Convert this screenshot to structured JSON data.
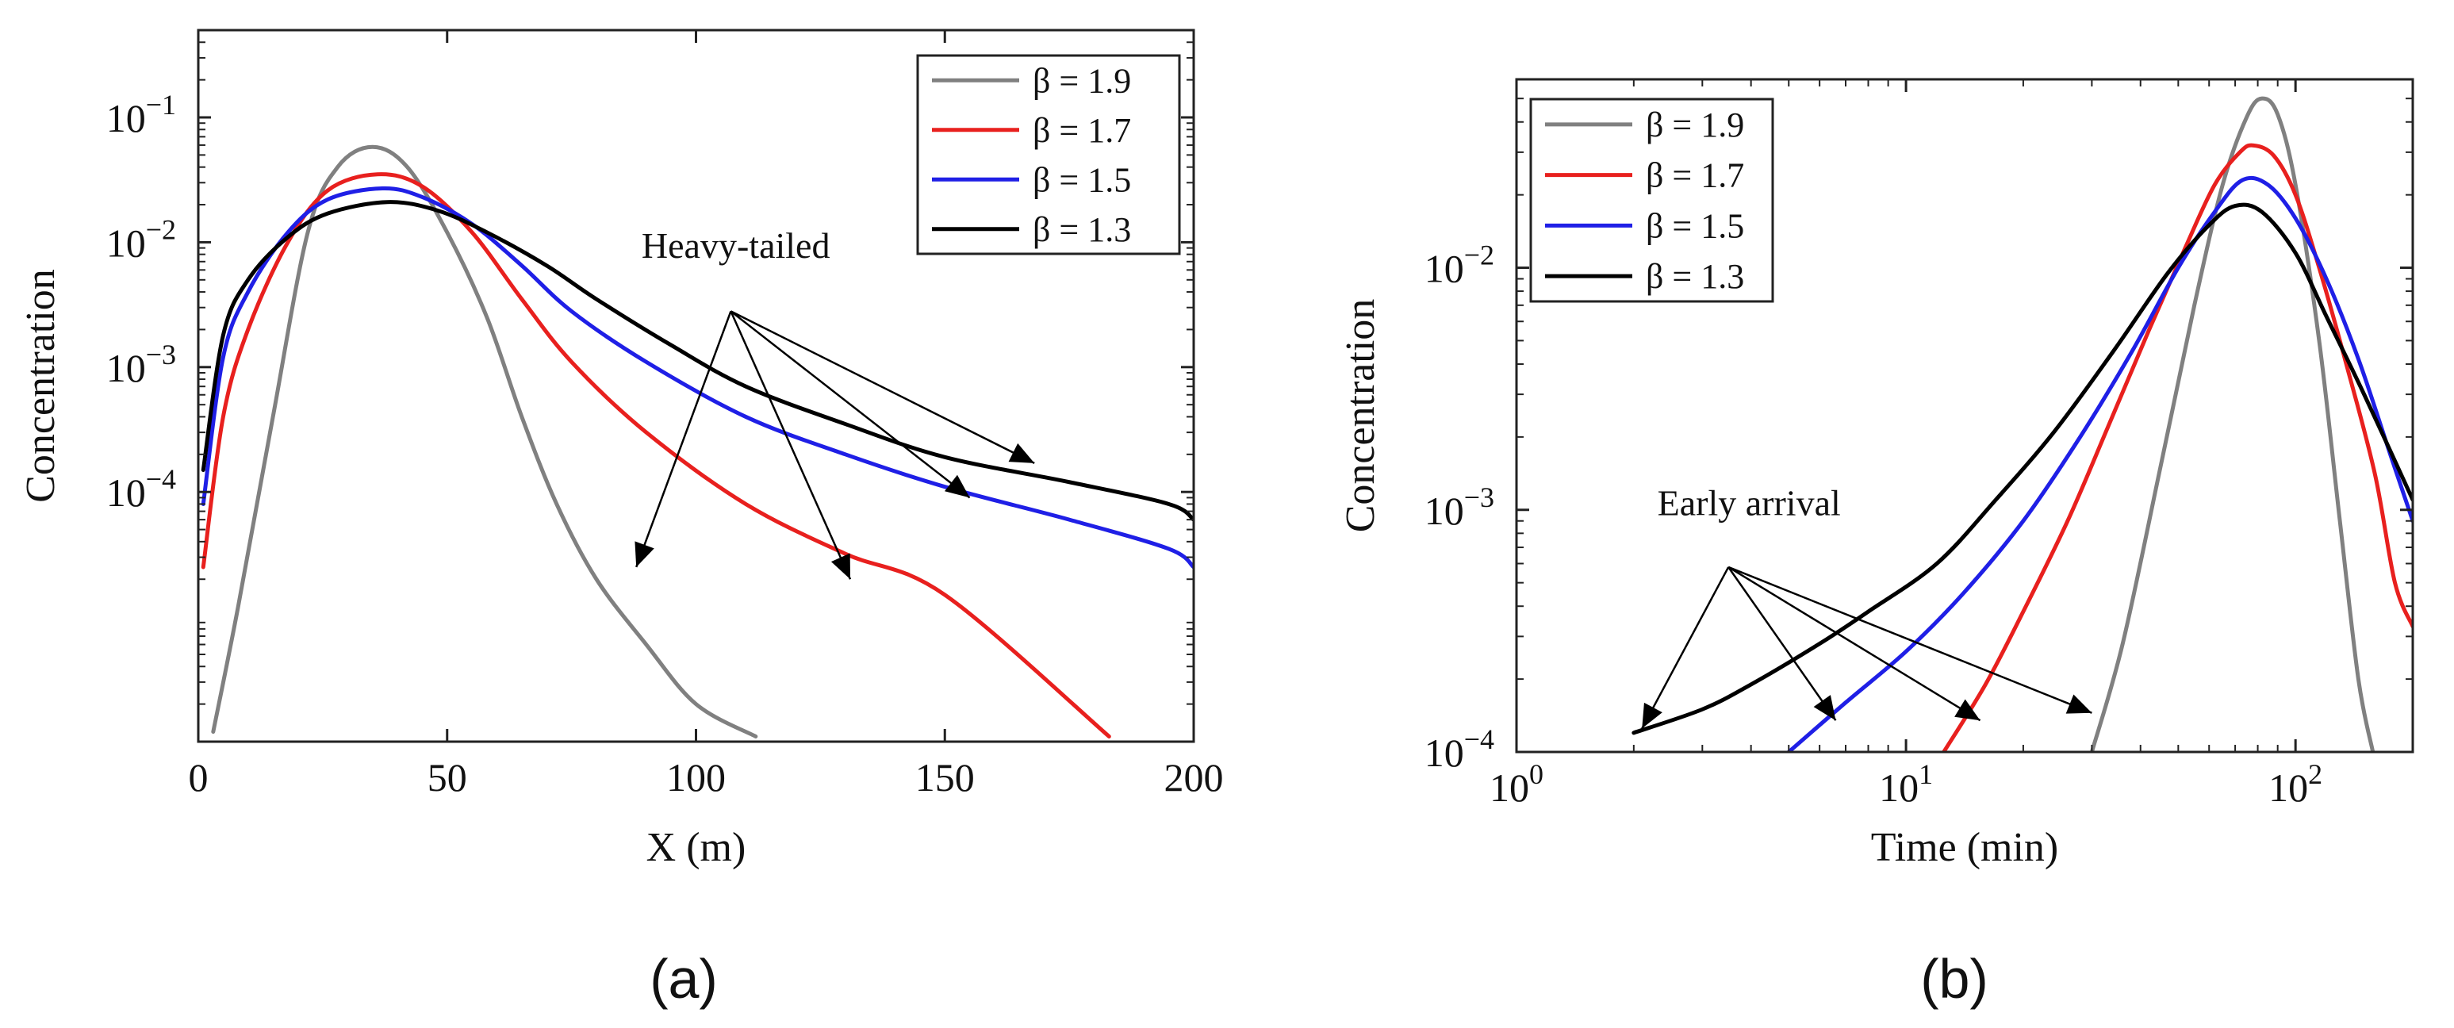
{
  "chart_data": [
    {
      "type": "line",
      "panel_label": "(a)",
      "xlabel": "X (m)",
      "ylabel": "Concentration",
      "xscale": "linear",
      "yscale": "log",
      "xlim": [
        0,
        200
      ],
      "ylim": [
        1e-06,
        0.5
      ],
      "xticks": [
        0,
        50,
        100,
        150,
        200
      ],
      "xtick_labels": [
        "0",
        "50",
        "100",
        "150",
        "200"
      ],
      "yticks": [
        0.0001,
        0.001,
        0.01,
        0.1
      ],
      "ytick_labels": [
        "10^-4",
        "10^-3",
        "10^-2",
        "10^-1"
      ],
      "legend_position": "top-right",
      "series": [
        {
          "name": "β = 1.9",
          "color": "#808080",
          "x": [
            3,
            8,
            15,
            22,
            28,
            35,
            42,
            50,
            58,
            65,
            72,
            80,
            90,
            100,
            112
          ],
          "y": [
            1.2e-06,
            1.2e-05,
            0.0004,
            0.012,
            0.04,
            0.058,
            0.04,
            0.012,
            0.0025,
            0.0004,
            8e-05,
            2e-05,
            6e-06,
            2e-06,
            1.1e-06
          ]
        },
        {
          "name": "β = 1.7",
          "color": "#e8201e",
          "x": [
            1,
            5,
            10,
            18,
            26,
            36,
            45,
            55,
            65,
            75,
            90,
            110,
            130,
            150,
            183
          ],
          "y": [
            2.5e-05,
            0.0004,
            0.002,
            0.01,
            0.026,
            0.035,
            0.028,
            0.012,
            0.0035,
            0.0011,
            0.0003,
            8e-05,
            3.2e-05,
            1.5e-05,
            1.1e-06
          ]
        },
        {
          "name": "β = 1.5",
          "color": "#1f1fe6",
          "x": [
            1,
            5,
            10,
            18,
            26,
            37,
            45,
            55,
            65,
            75,
            90,
            110,
            130,
            150,
            175,
            195,
            200
          ],
          "y": [
            8e-05,
            0.0012,
            0.004,
            0.012,
            0.022,
            0.027,
            0.023,
            0.014,
            0.0065,
            0.0028,
            0.0011,
            0.0004,
            0.0002,
            0.00011,
            6e-05,
            3.5e-05,
            2.5e-05
          ]
        },
        {
          "name": "β = 1.3",
          "color": "#000000",
          "x": [
            1,
            5,
            10,
            18,
            26,
            38,
            48,
            58,
            70,
            80,
            95,
            110,
            130,
            150,
            175,
            195,
            200
          ],
          "y": [
            0.00015,
            0.0018,
            0.005,
            0.011,
            0.017,
            0.021,
            0.018,
            0.012,
            0.0065,
            0.0035,
            0.0015,
            0.0007,
            0.00035,
            0.00019,
            0.00012,
            8e-05,
            6e-05
          ]
        }
      ],
      "annotations": [
        {
          "text": "Heavy-tailed",
          "anchor": {
            "x": 108,
            "y": 0.0075
          },
          "origin": {
            "x": 107,
            "y": 0.0028
          },
          "targets": [
            {
              "x": 88,
              "y": 2.5e-05
            },
            {
              "x": 131,
              "y": 2e-05
            },
            {
              "x": 155,
              "y": 9e-05
            },
            {
              "x": 168,
              "y": 0.00017
            }
          ]
        }
      ]
    },
    {
      "type": "line",
      "panel_label": "(b)",
      "xlabel": "Time (min)",
      "ylabel": "Concentration",
      "xscale": "log",
      "yscale": "log",
      "xlim": [
        1,
        200
      ],
      "ylim": [
        0.0001,
        0.06
      ],
      "xticks": [
        1,
        10,
        100
      ],
      "xtick_labels": [
        "10^0",
        "10^1",
        "10^2"
      ],
      "yticks": [
        0.0001,
        0.001,
        0.01
      ],
      "ytick_labels": [
        "10^-4",
        "10^-3",
        "10^-2"
      ],
      "legend_position": "top-left",
      "series": [
        {
          "name": "β = 1.9",
          "color": "#808080",
          "x": [
            30,
            36,
            45,
            55,
            65,
            75,
            82,
            90,
            100,
            115,
            130,
            145,
            158
          ],
          "y": [
            0.0001,
            0.00028,
            0.0015,
            0.007,
            0.022,
            0.042,
            0.05,
            0.043,
            0.022,
            0.005,
            0.0009,
            0.0002,
            0.0001
          ]
        },
        {
          "name": "β = 1.7",
          "color": "#e8201e",
          "x": [
            12.5,
            16,
            20,
            26,
            33,
            42,
            52,
            62,
            72,
            78,
            88,
            100,
            115,
            135,
            160,
            180,
            200
          ],
          "y": [
            0.0001,
            0.00019,
            0.00038,
            0.0009,
            0.0022,
            0.0055,
            0.012,
            0.022,
            0.03,
            0.032,
            0.029,
            0.02,
            0.01,
            0.004,
            0.0014,
            0.0005,
            0.00033
          ]
        },
        {
          "name": "β = 1.5",
          "color": "#1f1fe6",
          "x": [
            5,
            7,
            10,
            14,
            20,
            28,
            38,
            50,
            62,
            73,
            85,
            100,
            120,
            145,
            175,
            200
          ],
          "y": [
            0.0001,
            0.00016,
            0.00026,
            0.00045,
            0.0009,
            0.002,
            0.0045,
            0.01,
            0.017,
            0.023,
            0.022,
            0.016,
            0.009,
            0.0042,
            0.0017,
            0.0009
          ]
        },
        {
          "name": "β = 1.3",
          "color": "#000000",
          "x": [
            2,
            3,
            4,
            6,
            8,
            12,
            17,
            24,
            34,
            47,
            60,
            70,
            82,
            100,
            120,
            150,
            200
          ],
          "y": [
            0.00012,
            0.00015,
            0.00019,
            0.00028,
            0.00038,
            0.0006,
            0.0011,
            0.0021,
            0.0045,
            0.0095,
            0.015,
            0.018,
            0.017,
            0.0115,
            0.0063,
            0.003,
            0.0011
          ]
        }
      ],
      "annotations": [
        {
          "text": "Early arrival",
          "anchor": {
            "x": 2.3,
            "y": 0.00095
          },
          "origin": {
            "x": 3.5,
            "y": 0.00058
          },
          "targets": [
            {
              "x": 2.1,
              "y": 0.000125
            },
            {
              "x": 6.6,
              "y": 0.000135
            },
            {
              "x": 15.5,
              "y": 0.000135
            },
            {
              "x": 30,
              "y": 0.000145
            }
          ]
        }
      ]
    }
  ]
}
